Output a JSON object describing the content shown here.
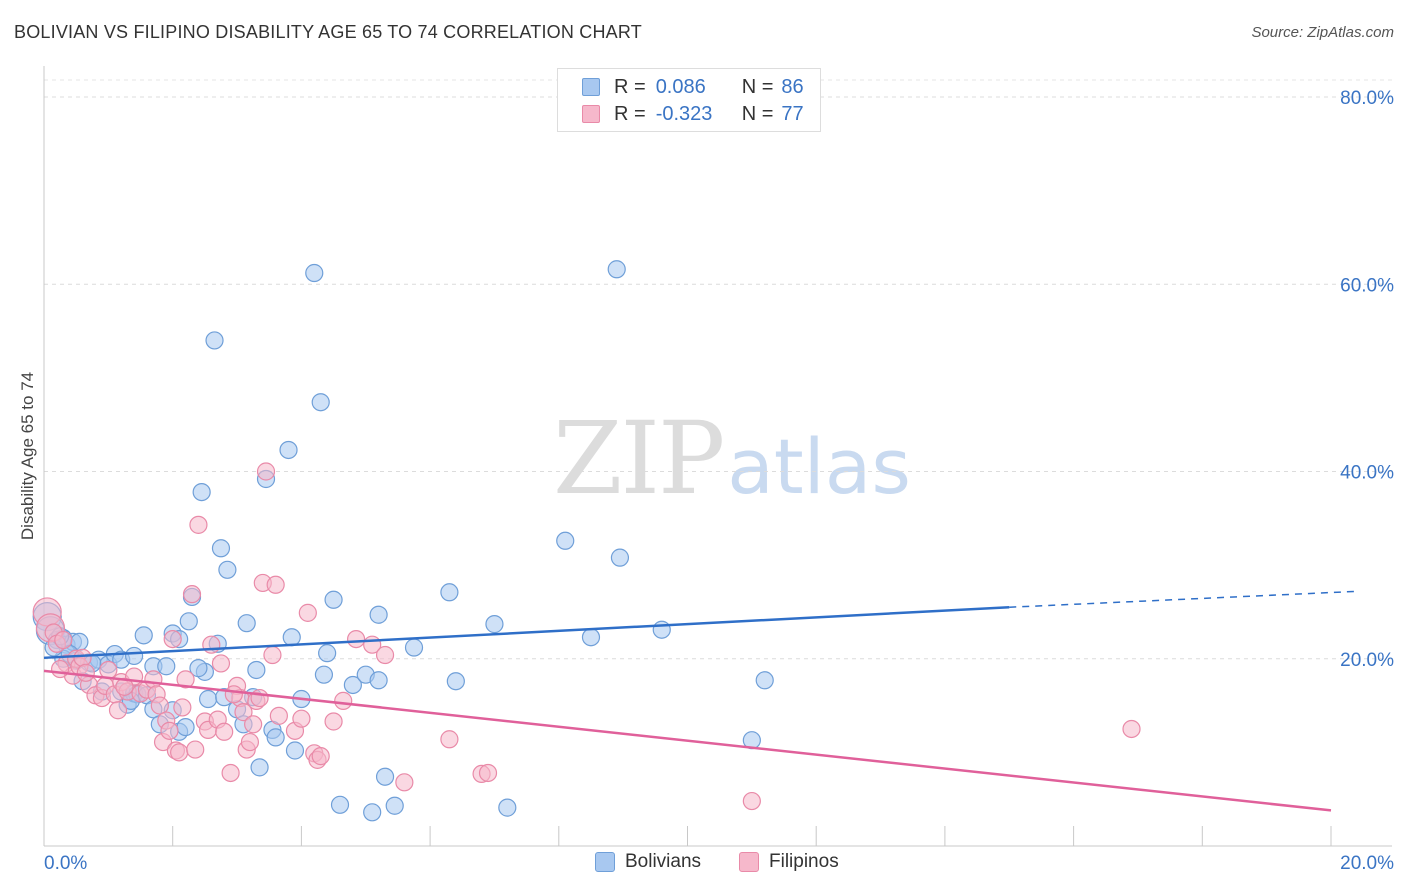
{
  "header": {
    "title": "BOLIVIAN VS FILIPINO DISABILITY AGE 65 TO 74 CORRELATION CHART",
    "source": "Source: ZipAtlas.com"
  },
  "watermark": {
    "zip": "ZIP",
    "atlas": "atlas"
  },
  "legend": {
    "rows": [
      {
        "r_label": "R =",
        "r_value": "0.086",
        "n_label": "N =",
        "n_value": "86"
      },
      {
        "r_label": "R =",
        "r_value": "-0.323",
        "n_label": "N =",
        "n_value": "77"
      }
    ]
  },
  "bottom_legend": {
    "items": [
      {
        "label": "Bolivians"
      },
      {
        "label": "Filipinos"
      }
    ]
  },
  "colors": {
    "blue_fill": "#a8c8f0",
    "blue_stroke": "#6f9fd8",
    "blue_line": "#2f6fc8",
    "pink_fill": "#f6b8cb",
    "pink_stroke": "#e98aa8",
    "pink_line": "#e0609a",
    "axis_text": "#3a74c4"
  },
  "chart_data": {
    "type": "scatter",
    "title": "BOLIVIAN VS FILIPINO DISABILITY AGE 65 TO 74 CORRELATION CHART",
    "xlabel": "",
    "ylabel": "Disability Age 65 to 74",
    "xlim": [
      0,
      20
    ],
    "ylim": [
      0,
      80
    ],
    "x_ticks": [
      "0.0%",
      "20.0%"
    ],
    "y_ticks": [
      "20.0%",
      "40.0%",
      "60.0%",
      "80.0%"
    ],
    "y_tick_values": [
      20,
      40,
      60,
      80
    ],
    "grid": true,
    "legend_position": "top-center",
    "series": [
      {
        "name": "Bolivians",
        "color": "#a8c8f0",
        "trend": {
          "x": [
            0,
            15
          ],
          "y": [
            20.1,
            25.5
          ],
          "dashed_to": [
            20.4,
            27.2
          ]
        },
        "points": [
          [
            0.05,
            24.5
          ],
          [
            0.1,
            23
          ],
          [
            0.2,
            22
          ],
          [
            0.3,
            22.2
          ],
          [
            0.35,
            21.5
          ],
          [
            0.45,
            21.8
          ],
          [
            0.55,
            21.8
          ],
          [
            0.3,
            20
          ],
          [
            0.5,
            19.8
          ],
          [
            0.7,
            19.6
          ],
          [
            0.85,
            19.9
          ],
          [
            1.0,
            19.4
          ],
          [
            1.1,
            20.5
          ],
          [
            1.2,
            19.9
          ],
          [
            1.4,
            20.3
          ],
          [
            1.55,
            22.5
          ],
          [
            1.7,
            19.2
          ],
          [
            1.9,
            19.2
          ],
          [
            2.0,
            22.7
          ],
          [
            2.1,
            22.1
          ],
          [
            0.6,
            17.6
          ],
          [
            0.9,
            16.5
          ],
          [
            1.2,
            16.5
          ],
          [
            1.3,
            15.1
          ],
          [
            1.4,
            16.3
          ],
          [
            1.45,
            16.2
          ],
          [
            1.6,
            16.1
          ],
          [
            1.7,
            14.6
          ],
          [
            1.8,
            13
          ],
          [
            2.0,
            14.5
          ],
          [
            2.1,
            12.2
          ],
          [
            2.2,
            12.7
          ],
          [
            2.25,
            24
          ],
          [
            2.3,
            26.6
          ],
          [
            2.45,
            37.8
          ],
          [
            2.5,
            18.6
          ],
          [
            2.55,
            15.7
          ],
          [
            2.65,
            54
          ],
          [
            2.7,
            21.6
          ],
          [
            2.75,
            31.8
          ],
          [
            2.8,
            15.9
          ],
          [
            2.85,
            29.5
          ],
          [
            3.0,
            14.6
          ],
          [
            3.1,
            13
          ],
          [
            3.15,
            23.8
          ],
          [
            3.25,
            15.9
          ],
          [
            3.3,
            18.8
          ],
          [
            3.35,
            8.4
          ],
          [
            3.45,
            39.2
          ],
          [
            3.55,
            12.4
          ],
          [
            3.8,
            42.3
          ],
          [
            3.85,
            22.3
          ],
          [
            3.9,
            10.2
          ],
          [
            4.0,
            15.7
          ],
          [
            4.2,
            61.2
          ],
          [
            4.3,
            47.4
          ],
          [
            4.35,
            18.3
          ],
          [
            4.4,
            20.6
          ],
          [
            4.5,
            26.3
          ],
          [
            4.6,
            4.4
          ],
          [
            4.8,
            17.2
          ],
          [
            5.0,
            18.3
          ],
          [
            5.1,
            3.6
          ],
          [
            5.2,
            17.7
          ],
          [
            5.2,
            24.7
          ],
          [
            5.3,
            7.4
          ],
          [
            5.45,
            4.3
          ],
          [
            5.75,
            21.2
          ],
          [
            6.3,
            27.1
          ],
          [
            6.4,
            17.6
          ],
          [
            7.0,
            23.7
          ],
          [
            7.2,
            4.1
          ],
          [
            8.1,
            32.6
          ],
          [
            8.5,
            22.3
          ],
          [
            8.9,
            61.6
          ],
          [
            8.95,
            30.8
          ],
          [
            9.6,
            23.1
          ],
          [
            11.0,
            11.3
          ],
          [
            11.2,
            17.7
          ],
          [
            0.15,
            21.2
          ],
          [
            0.25,
            22.4
          ],
          [
            0.75,
            19.5
          ],
          [
            1.35,
            15.5
          ],
          [
            2.4,
            19.0
          ],
          [
            3.6,
            11.6
          ],
          [
            0.4,
            20.5
          ]
        ]
      },
      {
        "name": "Filipinos",
        "color": "#f6b8cb",
        "trend": {
          "x": [
            0,
            20
          ],
          "y": [
            18.7,
            3.8
          ]
        },
        "points": [
          [
            0.05,
            25
          ],
          [
            0.1,
            23.3
          ],
          [
            0.15,
            22.8
          ],
          [
            0.2,
            21.6
          ],
          [
            0.3,
            22
          ],
          [
            0.35,
            19.5
          ],
          [
            0.45,
            18.2
          ],
          [
            0.5,
            20
          ],
          [
            0.55,
            19.2
          ],
          [
            0.6,
            20.1
          ],
          [
            0.7,
            17.2
          ],
          [
            0.8,
            16.1
          ],
          [
            0.9,
            15.8
          ],
          [
            0.95,
            17.1
          ],
          [
            1.0,
            18.8
          ],
          [
            1.1,
            16.2
          ],
          [
            1.15,
            14.5
          ],
          [
            1.2,
            17.5
          ],
          [
            1.3,
            16.5
          ],
          [
            1.4,
            18.1
          ],
          [
            1.5,
            16.3
          ],
          [
            1.6,
            16.7
          ],
          [
            1.7,
            17.8
          ],
          [
            1.75,
            16.2
          ],
          [
            1.8,
            15
          ],
          [
            1.85,
            11.1
          ],
          [
            1.9,
            13.4
          ],
          [
            1.95,
            12.3
          ],
          [
            2.0,
            22.1
          ],
          [
            2.05,
            10.2
          ],
          [
            2.1,
            10
          ],
          [
            2.2,
            17.8
          ],
          [
            2.3,
            26.9
          ],
          [
            2.35,
            10.3
          ],
          [
            2.4,
            34.3
          ],
          [
            2.5,
            13.3
          ],
          [
            2.55,
            12.4
          ],
          [
            2.6,
            21.5
          ],
          [
            2.7,
            13.5
          ],
          [
            2.75,
            19.5
          ],
          [
            2.8,
            12.2
          ],
          [
            2.9,
            7.8
          ],
          [
            3.0,
            17.1
          ],
          [
            3.05,
            15.8
          ],
          [
            3.1,
            14.3
          ],
          [
            3.15,
            10.3
          ],
          [
            3.2,
            11.1
          ],
          [
            3.25,
            13
          ],
          [
            3.3,
            15.5
          ],
          [
            3.35,
            15.8
          ],
          [
            3.4,
            28.1
          ],
          [
            3.45,
            40
          ],
          [
            3.55,
            20.4
          ],
          [
            3.6,
            27.9
          ],
          [
            3.65,
            13.9
          ],
          [
            3.9,
            12.3
          ],
          [
            4.0,
            13.6
          ],
          [
            4.1,
            24.9
          ],
          [
            4.2,
            9.9
          ],
          [
            4.25,
            9.2
          ],
          [
            4.3,
            9.6
          ],
          [
            4.5,
            13.3
          ],
          [
            4.65,
            15.5
          ],
          [
            4.85,
            22.1
          ],
          [
            5.1,
            21.5
          ],
          [
            5.3,
            20.4
          ],
          [
            5.6,
            6.8
          ],
          [
            6.3,
            11.4
          ],
          [
            6.8,
            7.7
          ],
          [
            6.9,
            7.8
          ],
          [
            11.0,
            4.8
          ],
          [
            16.9,
            12.5
          ],
          [
            0.25,
            18.9
          ],
          [
            0.65,
            18.5
          ],
          [
            1.25,
            17.0
          ],
          [
            2.15,
            14.8
          ],
          [
            2.95,
            16.2
          ]
        ]
      }
    ]
  }
}
